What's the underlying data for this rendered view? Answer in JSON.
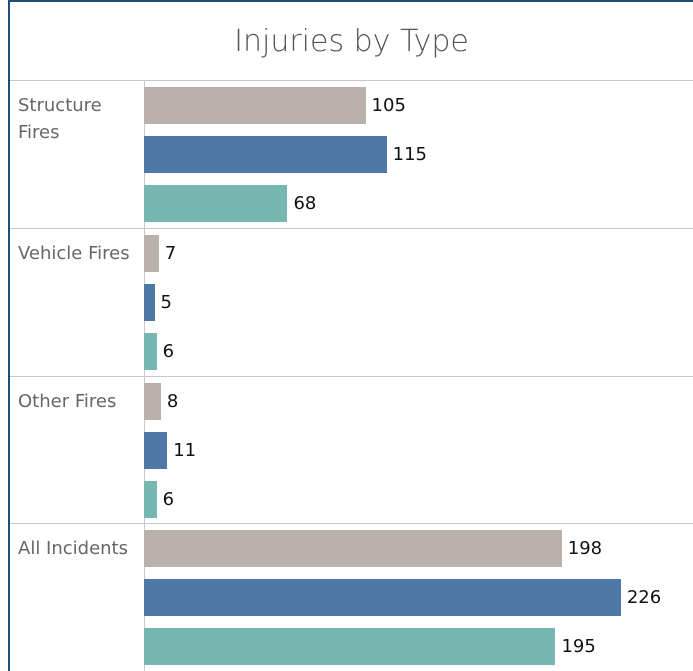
{
  "chart_data": {
    "type": "bar",
    "orientation": "horizontal",
    "title": "Injuries by Type",
    "categories": [
      "Structure Fires",
      "Vehicle Fires",
      "Other Fires",
      "All Incidents"
    ],
    "series": [
      {
        "color": "#bab0ac",
        "values": [
          105,
          7,
          8,
          198
        ]
      },
      {
        "color": "#4e79a7",
        "values": [
          115,
          5,
          11,
          226
        ]
      },
      {
        "color": "#76b7b2",
        "values": [
          68,
          6,
          6,
          195
        ]
      }
    ]
  }
}
